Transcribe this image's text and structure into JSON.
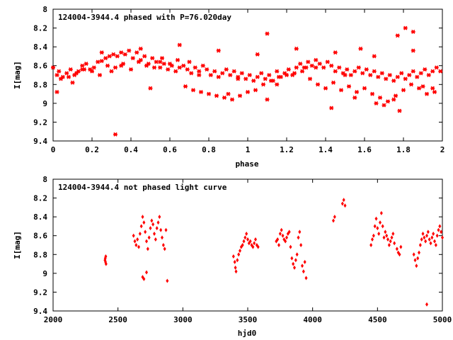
{
  "chart_data": [
    {
      "type": "scatter",
      "title": "124004-3944.4 phased with P=76.020day",
      "xlabel": "phase",
      "ylabel": "I[mag]",
      "xlim": [
        0,
        2
      ],
      "ylim": [
        9.4,
        8
      ],
      "y_inverted": true,
      "x_ticks": [
        "0",
        "0.2",
        "0.4",
        "0.6",
        "0.8",
        "1",
        "1.2",
        "1.4",
        "1.6",
        "1.8",
        "2"
      ],
      "y_ticks": [
        "8",
        "8.2",
        "8.4",
        "8.6",
        "8.8",
        "9",
        "9.2",
        "9.4"
      ],
      "marker_color": "#ff0000",
      "grid": false,
      "series": [
        {
          "x": [
            0.0,
            0.02,
            0.03,
            0.05,
            0.07,
            0.09,
            0.11,
            0.13,
            0.15,
            0.17,
            0.19,
            0.21,
            0.23,
            0.25,
            0.27,
            0.29,
            0.31,
            0.33,
            0.35,
            0.37,
            0.39,
            0.41,
            0.43,
            0.45,
            0.47,
            0.49,
            0.51,
            0.53,
            0.55,
            0.57,
            0.59,
            0.61,
            0.63,
            0.65,
            0.67,
            0.69,
            0.71,
            0.73,
            0.75,
            0.77,
            0.79,
            0.81,
            0.83,
            0.85,
            0.87,
            0.89,
            0.91,
            0.93,
            0.95,
            0.97,
            0.99,
            1.01,
            1.03,
            1.05,
            1.07,
            1.09,
            1.11,
            1.13,
            1.15,
            1.17,
            1.19,
            1.21,
            1.23,
            1.25,
            1.27,
            1.29,
            1.31,
            1.33,
            1.35,
            1.37,
            1.39,
            1.41,
            1.43,
            1.45,
            1.47,
            1.49,
            1.51,
            1.53,
            1.55,
            1.57,
            1.59,
            1.61,
            1.63,
            1.65,
            1.67,
            1.69,
            1.71,
            1.73,
            1.75,
            1.77,
            1.79,
            1.81,
            1.83,
            1.85,
            1.87,
            1.89,
            1.91,
            1.93,
            1.95,
            1.97,
            1.99,
            0.04,
            0.08,
            0.12,
            0.16,
            0.2,
            0.24,
            0.28,
            0.32,
            0.36,
            0.4,
            0.44,
            0.48,
            0.52,
            0.56,
            0.6,
            0.64,
            0.68,
            0.72,
            0.76,
            0.8,
            0.84,
            0.88,
            0.92,
            0.96,
            1.0,
            1.04,
            1.08,
            1.12,
            1.16,
            1.2,
            1.24,
            1.28,
            1.32,
            1.36,
            1.4,
            1.44,
            1.48,
            1.52,
            1.56,
            1.6,
            1.64,
            1.68,
            1.72,
            1.76,
            1.8,
            1.84,
            1.88,
            1.92,
            1.96,
            0.1,
            0.3,
            0.5,
            0.7,
            0.9,
            1.1,
            1.3,
            1.5,
            1.7,
            1.9,
            0.32,
            0.02,
            1.1,
            1.77,
            1.81,
            1.85,
            1.43,
            1.58,
            1.66,
            1.78,
            0.25,
            0.45,
            0.65,
            0.85,
            1.05,
            1.25,
            1.45,
            1.65,
            1.85,
            0.15,
            0.35,
            0.55,
            0.75,
            0.95,
            1.15,
            1.35,
            1.55,
            1.75,
            1.95
          ],
          "y": [
            8.62,
            8.7,
            8.66,
            8.72,
            8.68,
            8.64,
            8.7,
            8.66,
            8.6,
            8.58,
            8.64,
            8.62,
            8.56,
            8.55,
            8.52,
            8.5,
            8.48,
            8.5,
            8.46,
            8.48,
            8.44,
            8.52,
            8.46,
            8.54,
            8.5,
            8.58,
            8.52,
            8.56,
            8.62,
            8.58,
            8.64,
            8.6,
            8.66,
            8.62,
            8.6,
            8.64,
            8.68,
            8.62,
            8.66,
            8.6,
            8.64,
            8.7,
            8.66,
            8.72,
            8.68,
            8.64,
            8.7,
            8.66,
            8.72,
            8.68,
            8.74,
            8.7,
            8.76,
            8.72,
            8.68,
            8.74,
            8.7,
            8.76,
            8.66,
            8.72,
            8.68,
            8.64,
            8.7,
            8.62,
            8.58,
            8.62,
            8.56,
            8.6,
            8.54,
            8.58,
            8.62,
            8.56,
            8.6,
            8.66,
            8.62,
            8.68,
            8.64,
            8.7,
            8.66,
            8.62,
            8.68,
            8.64,
            8.7,
            8.66,
            8.72,
            8.68,
            8.74,
            8.7,
            8.76,
            8.72,
            8.68,
            8.74,
            8.7,
            8.66,
            8.72,
            8.68,
            8.64,
            8.7,
            8.66,
            8.62,
            8.66,
            8.74,
            8.72,
            8.68,
            8.64,
            8.66,
            8.7,
            8.6,
            8.62,
            8.58,
            8.64,
            8.56,
            8.6,
            8.62,
            8.52,
            8.58,
            8.54,
            8.82,
            8.86,
            8.88,
            8.9,
            8.92,
            8.94,
            8.96,
            8.92,
            8.88,
            8.86,
            8.8,
            8.76,
            8.72,
            8.7,
            8.68,
            8.66,
            8.74,
            8.8,
            8.84,
            8.78,
            8.86,
            8.82,
            8.88,
            8.84,
            8.9,
            8.94,
            8.98,
            8.92,
            8.86,
            8.8,
            8.84,
            8.9,
            8.88,
            8.78,
            8.66,
            8.84,
            8.56,
            8.9,
            8.96,
            8.62,
            8.7,
            9.02,
            8.82,
            9.33,
            8.88,
            8.26,
            8.28,
            8.2,
            8.24,
            9.05,
            8.42,
            9.0,
            9.08,
            8.46,
            8.42,
            8.38,
            8.44,
            8.48,
            8.42,
            8.46,
            8.5,
            8.44,
            8.64,
            8.6,
            8.56,
            8.7,
            8.74,
            8.8,
            8.62,
            8.94,
            8.96,
            8.84
          ],
          "marker": "asterisk"
        }
      ]
    },
    {
      "type": "scatter",
      "title": "124004-3944.4 not phased light curve",
      "xlabel": "hjd0",
      "ylabel": "I[mag]",
      "xlim": [
        2000,
        5000
      ],
      "ylim": [
        9.4,
        8
      ],
      "y_inverted": true,
      "x_ticks": [
        "2000",
        "2500",
        "3000",
        "3500",
        "4000",
        "4500",
        "5000"
      ],
      "y_ticks": [
        "8",
        "8.2",
        "8.4",
        "8.6",
        "8.8",
        "9",
        "9.2",
        "9.4"
      ],
      "marker_color": "#ff0000",
      "grid": false,
      "series": [
        {
          "x": [
            2400,
            2402,
            2404,
            2406,
            2408,
            2620,
            2630,
            2640,
            2650,
            2660,
            2670,
            2680,
            2690,
            2700,
            2710,
            2720,
            2730,
            2740,
            2750,
            2760,
            2770,
            2780,
            2790,
            2800,
            2810,
            2820,
            2830,
            2840,
            2850,
            2860,
            2870,
            2690,
            2700,
            2720,
            2880,
            3390,
            3400,
            3405,
            3410,
            3420,
            3430,
            3440,
            3450,
            3460,
            3470,
            3480,
            3490,
            3500,
            3510,
            3520,
            3530,
            3540,
            3550,
            3560,
            3570,
            3580,
            3720,
            3730,
            3740,
            3750,
            3760,
            3770,
            3780,
            3790,
            3800,
            3810,
            3820,
            3830,
            3840,
            3850,
            3860,
            3870,
            3880,
            3890,
            3900,
            3910,
            3920,
            3930,
            3940,
            3950,
            4160,
            4170,
            4230,
            4240,
            4250,
            4450,
            4460,
            4470,
            4480,
            4490,
            4500,
            4510,
            4520,
            4530,
            4540,
            4550,
            4560,
            4570,
            4580,
            4590,
            4600,
            4610,
            4620,
            4630,
            4650,
            4660,
            4670,
            4680,
            4780,
            4790,
            4800,
            4810,
            4820,
            4830,
            4840,
            4850,
            4860,
            4870,
            4880,
            4890,
            4900,
            4910,
            4920,
            4930,
            4940,
            4950,
            4960,
            4970,
            4980,
            4990,
            5000,
            4880
          ],
          "y": [
            8.86,
            8.84,
            8.88,
            8.82,
            8.9,
            8.6,
            8.66,
            8.7,
            8.64,
            8.72,
            8.58,
            8.5,
            8.4,
            8.46,
            8.56,
            8.66,
            8.74,
            8.62,
            8.52,
            8.44,
            8.48,
            8.58,
            8.64,
            8.52,
            8.46,
            8.4,
            8.54,
            8.62,
            8.7,
            8.74,
            8.54,
            9.04,
            9.06,
            8.99,
            9.08,
            8.82,
            8.88,
            8.94,
            8.98,
            8.86,
            8.8,
            8.76,
            8.72,
            8.7,
            8.66,
            8.62,
            8.58,
            8.64,
            8.68,
            8.66,
            8.7,
            8.72,
            8.68,
            8.64,
            8.7,
            8.72,
            8.66,
            8.64,
            8.7,
            8.58,
            8.54,
            8.6,
            8.64,
            8.66,
            8.62,
            8.58,
            8.56,
            8.72,
            8.84,
            8.9,
            8.94,
            8.86,
            8.8,
            8.62,
            8.56,
            8.7,
            8.92,
            8.98,
            8.88,
            9.05,
            8.44,
            8.4,
            8.26,
            8.22,
            8.28,
            8.7,
            8.64,
            8.6,
            8.5,
            8.42,
            8.52,
            8.58,
            8.46,
            8.36,
            8.5,
            8.62,
            8.56,
            8.6,
            8.64,
            8.7,
            8.66,
            8.62,
            8.58,
            8.68,
            8.74,
            8.78,
            8.8,
            8.72,
            8.8,
            8.86,
            8.92,
            8.84,
            8.78,
            8.7,
            8.64,
            8.58,
            8.62,
            8.66,
            8.6,
            8.56,
            8.64,
            8.68,
            8.62,
            8.58,
            8.66,
            8.7,
            8.6,
            8.54,
            8.5,
            8.56,
            8.62,
            9.33
          ],
          "marker": "diamond"
        }
      ]
    }
  ]
}
